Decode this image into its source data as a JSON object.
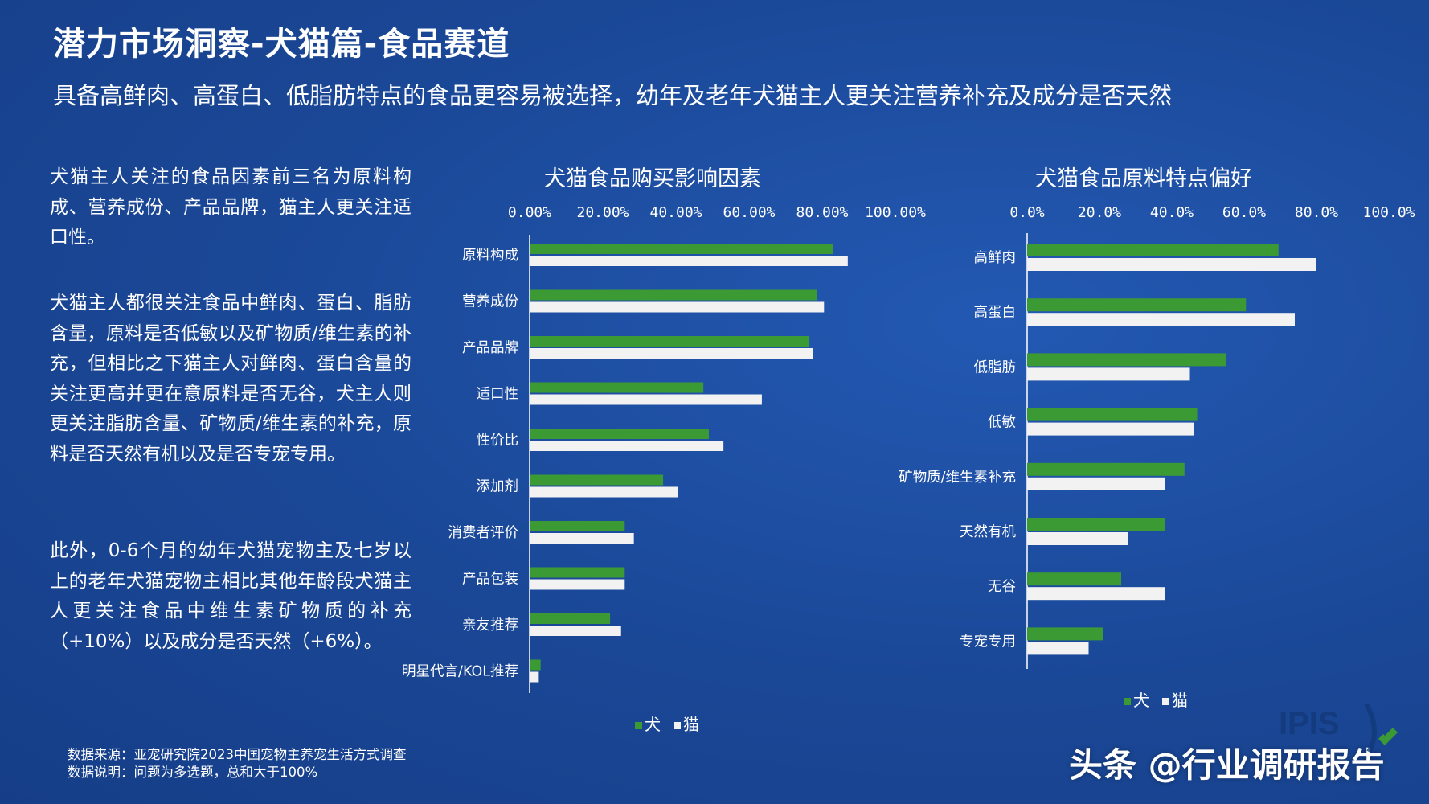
{
  "header": {
    "title": "潜力市场洞察-犬猫篇-食品赛道",
    "subtitle": "具备高鲜肉、高蛋白、低脂肪特点的食品更容易被选择，幼年及老年犬猫主人更关注营养补充及成分是否天然"
  },
  "left_text": {
    "para1": "犬猫主人关注的食品因素前三名为原料构成、营养成份、产品品牌，猫主人更关注适口性。",
    "para2": "犬猫主人都很关注食品中鲜肉、蛋白、脂肪含量，原料是否低敏以及矿物质/维生素的补充，但相比之下猫主人对鲜肉、蛋白含量的关注更高并更在意原料是否无谷，犬主人则更关注脂肪含量、矿物质/维生素的补充，原料是否天然有机以及是否专宠专用。",
    "para3": "此外，0-6个月的幼年犬猫宠物主及七岁以上的老年犬猫宠物主相比其他年龄段犬猫主人更关注食品中维生素矿物质的补充（+10%）以及成分是否天然（+6%）。"
  },
  "source": {
    "line1": "数据来源：亚宠研究院2023中国宠物主养宠生活方式调查",
    "line2": "数据说明：问题为多选题，总和大于100%"
  },
  "watermark": "头条 @行业调研报告",
  "logo_text": "IPIS",
  "colors": {
    "background": "#1c4a9c",
    "dog": "#3c9a35",
    "cat": "#f2f2f2"
  },
  "chart_data": [
    {
      "type": "bar",
      "orientation": "horizontal",
      "title": "犬猫食品购买影响因素",
      "categories": [
        "原料构成",
        "营养成份",
        "产品品牌",
        "适口性",
        "性价比",
        "添加剂",
        "消费者评价",
        "产品包装",
        "亲友推荐",
        "明星代言/KOL推荐"
      ],
      "series": [
        {
          "name": "犬",
          "values": [
            83,
            78.5,
            76.5,
            47.5,
            49,
            36.5,
            26,
            26,
            22,
            3
          ]
        },
        {
          "name": "猫",
          "values": [
            87,
            80.5,
            77.5,
            63.5,
            53,
            40.5,
            28.5,
            26,
            25,
            2.5
          ]
        }
      ],
      "xlim": [
        0,
        100
      ],
      "ticks": [
        "0.00%",
        "20.00%",
        "40.00%",
        "60.00%",
        "80.00%",
        "100.00%"
      ],
      "legend": "bottom"
    },
    {
      "type": "bar",
      "orientation": "horizontal",
      "title": "犬猫食品原料特点偏好",
      "categories": [
        "高鲜肉",
        "高蛋白",
        "低脂肪",
        "低敏",
        "矿物质/维生素补充",
        "天然有机",
        "无谷",
        "专宠专用"
      ],
      "series": [
        {
          "name": "犬",
          "values": [
            69.5,
            60.5,
            55,
            47,
            43.5,
            38,
            26,
            21
          ]
        },
        {
          "name": "猫",
          "values": [
            80,
            74,
            45,
            46,
            38,
            28,
            38,
            17
          ]
        }
      ],
      "xlim": [
        0,
        100
      ],
      "ticks": [
        "0.0%",
        "20.0%",
        "40.0%",
        "60.0%",
        "80.0%",
        "100.0%"
      ],
      "legend": "bottom"
    }
  ]
}
